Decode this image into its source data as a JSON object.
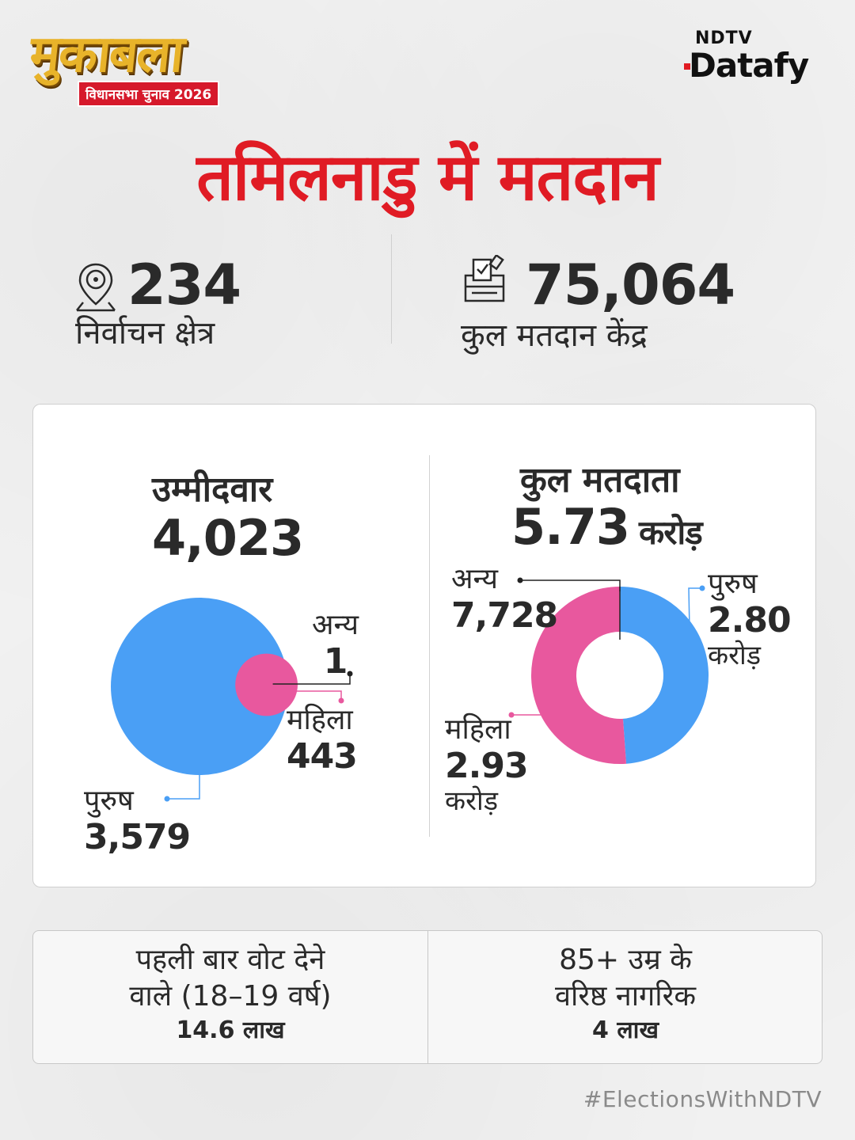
{
  "header": {
    "logo_text": "मुकाबला",
    "logo_subtag": "विधानसभा चुनाव 2026",
    "brand_top": "NDTV",
    "brand_bottom": "Datafy"
  },
  "title": "तमिलनाडु में मतदान",
  "stats": {
    "constituencies": {
      "value": "234",
      "label": "निर्वाचन क्षेत्र",
      "icon": "map-pin-icon"
    },
    "polling_stations": {
      "value": "75,064",
      "label": "कुल मतदान केंद्र",
      "icon": "ballot-box-icon"
    }
  },
  "candidates": {
    "title": "उम्मीदवार",
    "total": "4,023",
    "others_label": "अन्य",
    "others_value": "1",
    "women_label": "महिला",
    "women_value": "443",
    "men_label": "पुरुष",
    "men_value": "3,579"
  },
  "voters": {
    "title": "कुल मतदाता",
    "total": "5.73",
    "total_unit": "करोड़",
    "others_label": "अन्य",
    "others_value": "7,728",
    "men_label": "पुरुष",
    "men_value": "2.80",
    "men_unit": "करोड़",
    "women_label": "महिला",
    "women_value": "2.93",
    "women_unit": "करोड़"
  },
  "chart_data": [
    {
      "type": "pie",
      "categories": [
        "पुरुष",
        "महिला",
        "अन्य"
      ],
      "values": [
        3579,
        443,
        1
      ],
      "colors": [
        "#4a9ff5",
        "#e8589e",
        "#222222"
      ]
    },
    {
      "type": "pie",
      "categories": [
        "पुरुष",
        "महिला",
        "अन्य"
      ],
      "values": [
        2.8,
        2.93,
        0.0007728
      ],
      "colors": [
        "#4a9ff5",
        "#e8589e",
        "#222222"
      ]
    }
  ],
  "bottom": {
    "first_time_line1": "पहली बार वोट देने",
    "first_time_line2": "वाले (18–19 वर्ष)",
    "first_time_value": "14.6 लाख",
    "senior_line1": "85+ उम्र के",
    "senior_line2": "वरिष्ठ नागरिक",
    "senior_value": "4 लाख"
  },
  "hashtag": "#ElectionsWithNDTV",
  "colors": {
    "accent": "#e01b24",
    "male": "#4a9ff5",
    "female": "#e8589e"
  }
}
